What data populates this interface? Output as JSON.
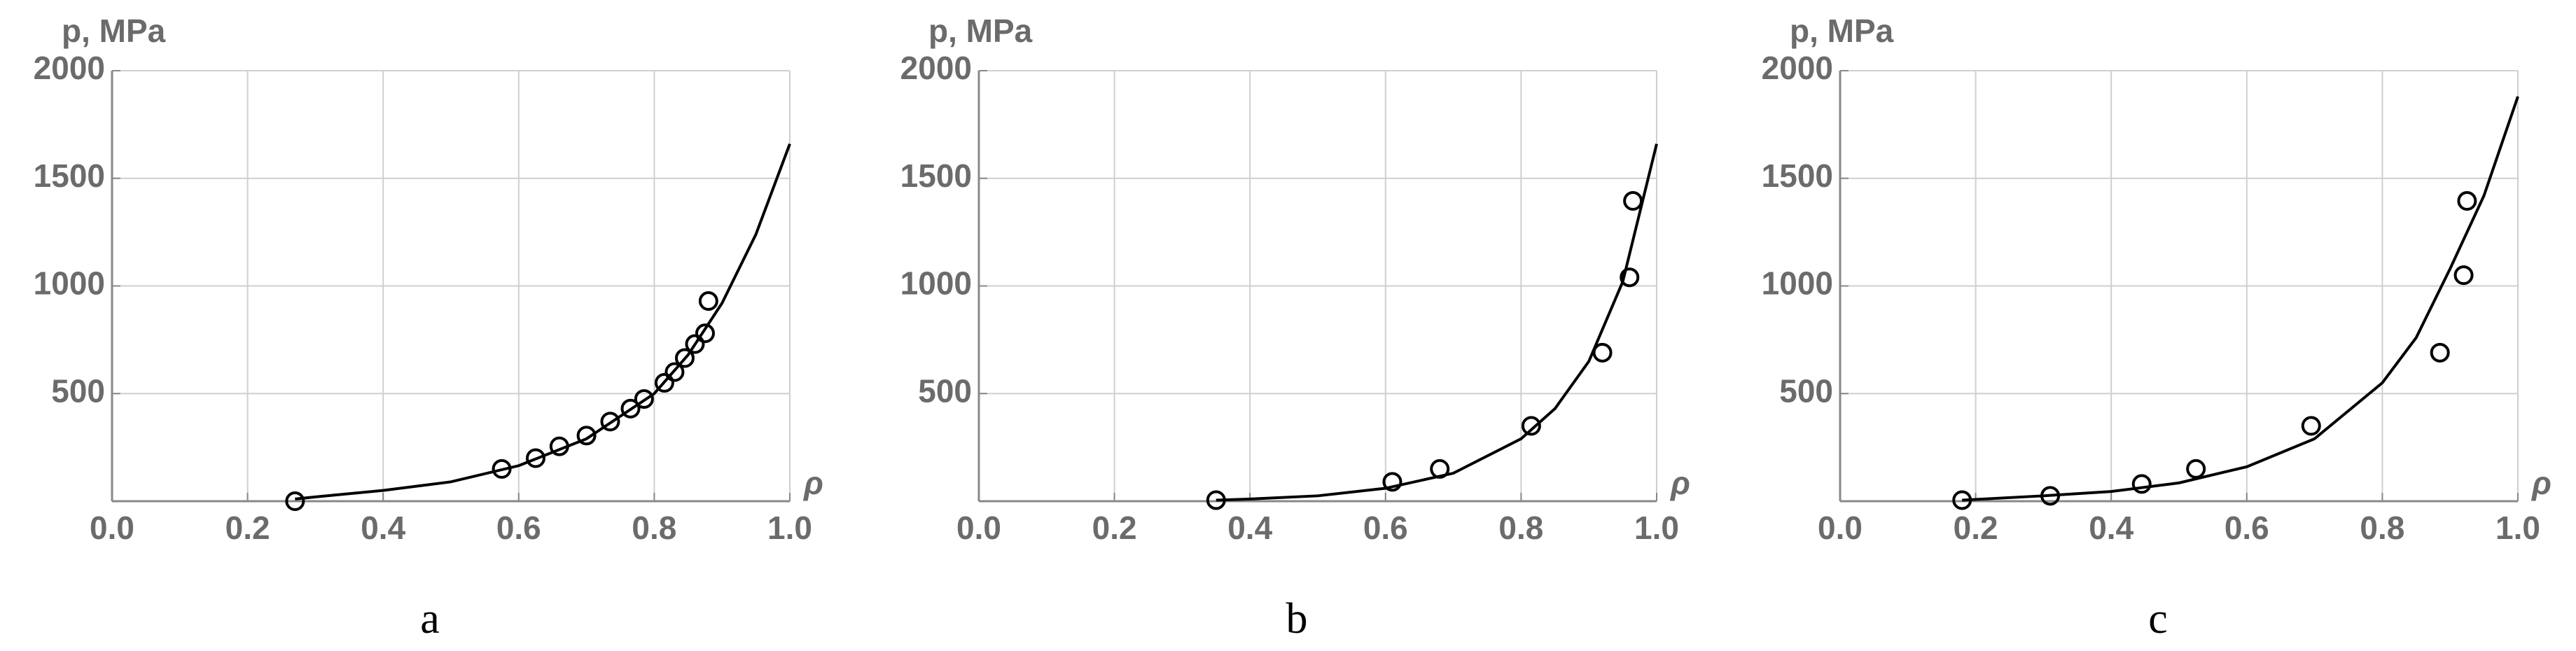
{
  "chart_data": [
    {
      "type": "scatter",
      "caption": "a",
      "ylabel": "p, MPa",
      "xlabel": "ρ",
      "xlim": [
        0,
        1
      ],
      "ylim": [
        0,
        2000
      ],
      "xticks": [
        {
          "value": 0,
          "label": "0.0"
        },
        {
          "value": 0.2,
          "label": "0.2"
        },
        {
          "value": 0.4,
          "label": "0.4"
        },
        {
          "value": 0.6,
          "label": "0.6"
        },
        {
          "value": 0.8,
          "label": "0.8"
        },
        {
          "value": 1,
          "label": "1.0"
        }
      ],
      "yticks": [
        500,
        1000,
        1500,
        2000
      ],
      "grid": true,
      "series": [
        {
          "type": "scatter",
          "color": "#000000",
          "x": [
            0.27,
            0.575,
            0.625,
            0.66,
            0.7,
            0.735,
            0.765,
            0.785,
            0.815,
            0.83,
            0.845,
            0.86,
            0.875,
            0.88
          ],
          "values": [
            0,
            150,
            200,
            255,
            305,
            370,
            430,
            475,
            550,
            600,
            665,
            730,
            780,
            930
          ]
        },
        {
          "type": "line",
          "color": "#000000",
          "x": [
            0.27,
            0.3,
            0.4,
            0.5,
            0.6,
            0.7,
            0.8,
            0.85,
            0.9,
            0.95,
            1.0
          ],
          "values": [
            10,
            20,
            50,
            90,
            165,
            290,
            500,
            680,
            920,
            1240,
            1660
          ]
        }
      ]
    },
    {
      "type": "scatter",
      "caption": "b",
      "ylabel": "p, MPa",
      "xlabel": "ρ",
      "xlim": [
        0,
        1
      ],
      "ylim": [
        0,
        2000
      ],
      "xticks": [
        {
          "value": 0,
          "label": "0.0"
        },
        {
          "value": 0.2,
          "label": "0.2"
        },
        {
          "value": 0.4,
          "label": "0.4"
        },
        {
          "value": 0.6,
          "label": "0.6"
        },
        {
          "value": 0.8,
          "label": "0.8"
        },
        {
          "value": 1,
          "label": "1.0"
        }
      ],
      "yticks": [
        500,
        1000,
        1500,
        2000
      ],
      "grid": true,
      "series": [
        {
          "type": "scatter",
          "color": "#000000",
          "x": [
            0.35,
            0.61,
            0.68,
            0.815,
            0.92,
            0.96,
            0.965
          ],
          "values": [
            5,
            90,
            150,
            350,
            690,
            1040,
            1395
          ]
        },
        {
          "type": "line",
          "color": "#000000",
          "x": [
            0.35,
            0.4,
            0.5,
            0.6,
            0.7,
            0.8,
            0.85,
            0.9,
            0.95,
            1.0
          ],
          "values": [
            5,
            10,
            25,
            60,
            130,
            290,
            430,
            650,
            1020,
            1660
          ]
        }
      ]
    },
    {
      "type": "scatter",
      "caption": "c",
      "ylabel": "p, MPa",
      "xlabel": "ρ",
      "xlim": [
        0,
        1
      ],
      "ylim": [
        0,
        2000
      ],
      "xticks": [
        {
          "value": 0,
          "label": "0.0"
        },
        {
          "value": 0.2,
          "label": "0.2"
        },
        {
          "value": 0.4,
          "label": "0.4"
        },
        {
          "value": 0.6,
          "label": "0.6"
        },
        {
          "value": 0.8,
          "label": "0.8"
        },
        {
          "value": 1,
          "label": "1.0"
        }
      ],
      "yticks": [
        500,
        1000,
        1500,
        2000
      ],
      "grid": true,
      "series": [
        {
          "type": "scatter",
          "color": "#000000",
          "x": [
            0.18,
            0.31,
            0.445,
            0.525,
            0.695,
            0.885,
            0.92,
            0.925
          ],
          "values": [
            5,
            25,
            80,
            150,
            350,
            690,
            1050,
            1395
          ]
        },
        {
          "type": "line",
          "color": "#000000",
          "x": [
            0.18,
            0.3,
            0.4,
            0.5,
            0.6,
            0.7,
            0.8,
            0.85,
            0.9,
            0.95,
            1.0
          ],
          "values": [
            5,
            25,
            45,
            85,
            160,
            290,
            550,
            760,
            1080,
            1420,
            1880
          ]
        }
      ]
    }
  ]
}
